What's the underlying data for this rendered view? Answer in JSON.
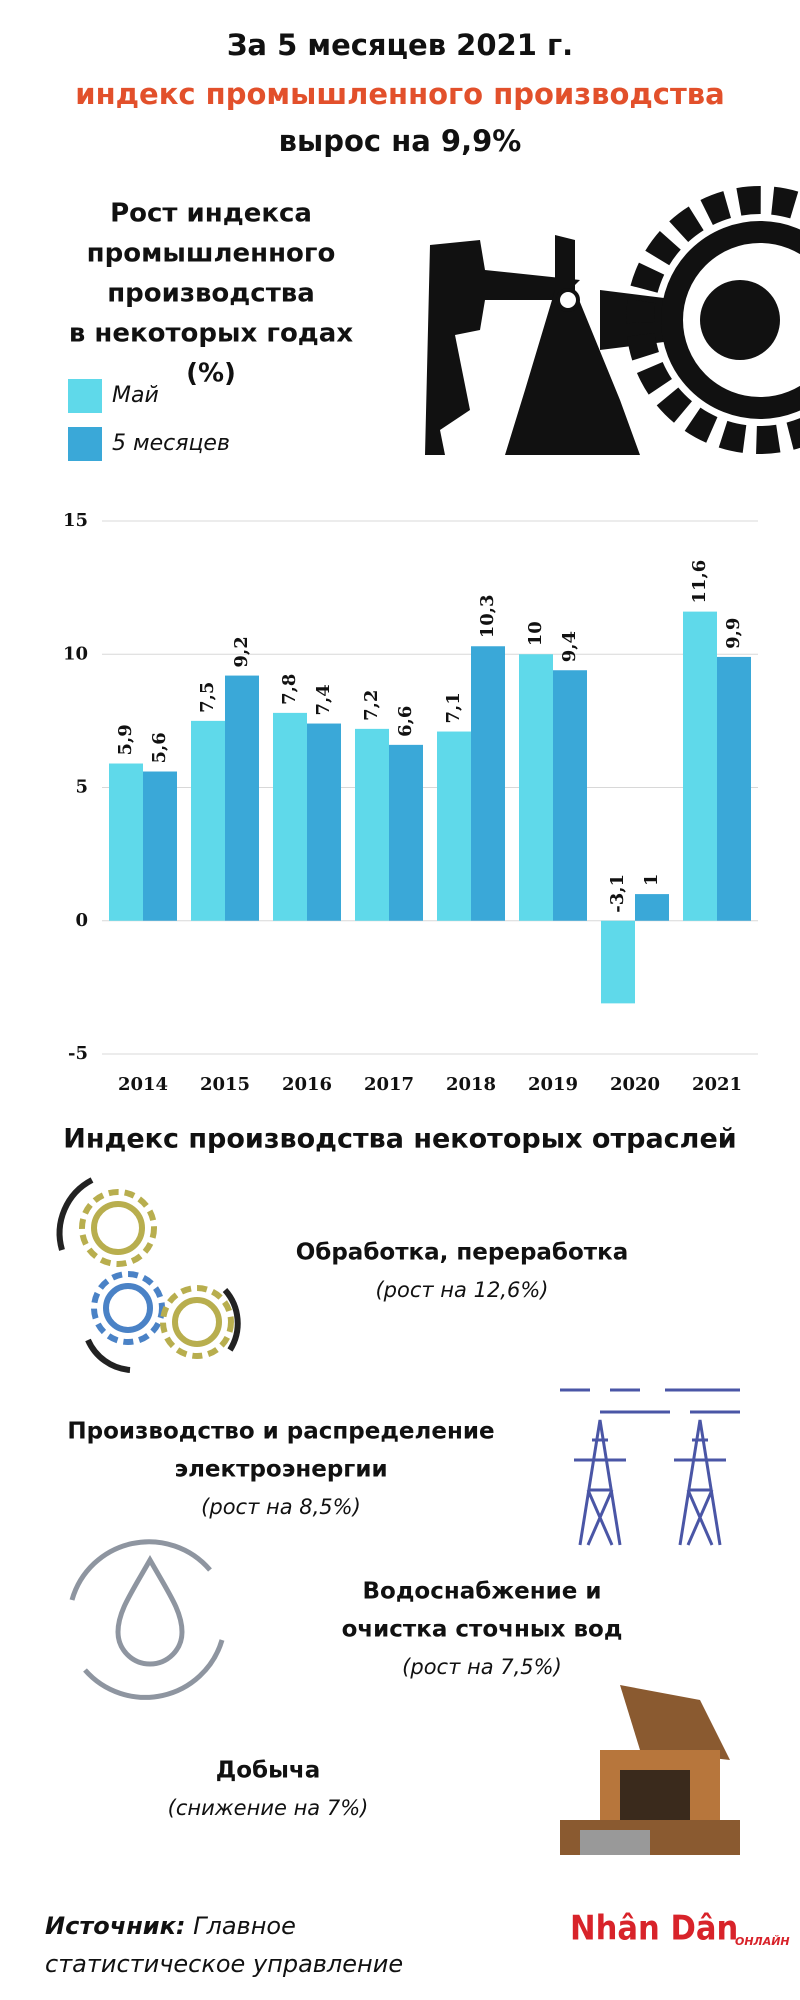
{
  "header": {
    "lines": [
      "За 5 месяцев 2021 г.",
      "индекс промышленного производства",
      "вырос на 9,9%"
    ]
  },
  "chart_data": {
    "type": "bar",
    "title": [
      "Рост индекса",
      "промышленного",
      "производства",
      "в некоторых годах",
      "(%)"
    ],
    "categories": [
      "2014",
      "2015",
      "2016",
      "2017",
      "2018",
      "2019",
      "2020",
      "2021"
    ],
    "series": [
      {
        "name": "Май",
        "color": "#5fd9ea",
        "values": [
          5.9,
          7.5,
          7.8,
          7.2,
          7.1,
          10,
          -3.1,
          11.6
        ],
        "value_labels": [
          "5,9",
          "7,5",
          "7,8",
          "7,2",
          "7,1",
          "10",
          "-3,1",
          "11,6"
        ]
      },
      {
        "name": "5 месяцев",
        "color": "#3aa8d8",
        "values": [
          5.6,
          9.2,
          7.4,
          6.6,
          10.3,
          9.4,
          1,
          9.9
        ],
        "value_labels": [
          "5,6",
          "9,2",
          "7,4",
          "6,6",
          "10,3",
          "9,4",
          "1",
          "9,9"
        ]
      }
    ],
    "ylim": [
      -5,
      15
    ],
    "yticks": [
      -5,
      0,
      5,
      10,
      15
    ],
    "grid": true
  },
  "sectors": {
    "heading": "Индекс производства некоторых отраслей",
    "items": [
      {
        "name": [
          "Обработка, переработка"
        ],
        "note": "(рост на 12,6%)"
      },
      {
        "name": [
          "Производство и распределение",
          "электроэнергии"
        ],
        "note": "(рост на 8,5%)"
      },
      {
        "name": [
          "Водоснабжение и",
          "очистка сточных вод"
        ],
        "note": "(рост на 7,5%)"
      },
      {
        "name": [
          "Добыча"
        ],
        "note": "(снижение на 7%)"
      }
    ]
  },
  "footer": {
    "source_label": "Источник:",
    "source": [
      "Главное",
      "статистическое управление"
    ],
    "logo": "Nhân Dân",
    "logo_sub": "ОНЛАЙН"
  }
}
